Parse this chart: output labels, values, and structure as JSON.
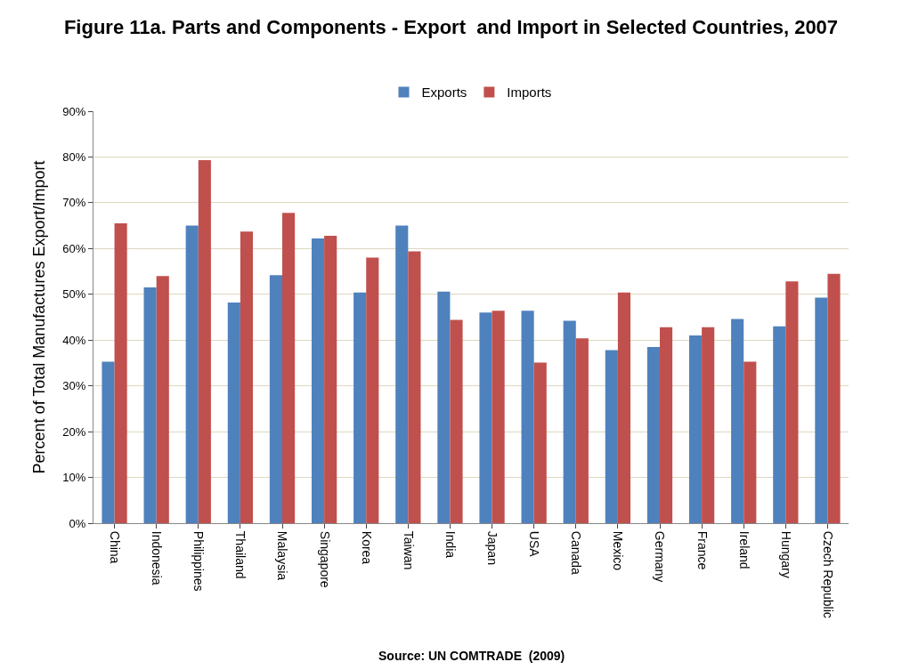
{
  "chart_data": {
    "type": "bar",
    "title": "Figure 11a. Parts and Components - Export  and Import in Selected Countries, 2007",
    "ylabel": "Percent of Total Manufactures Export/Import",
    "categories": [
      "China",
      "Indonesia",
      "Philippines",
      "Thailand",
      "Malaysia",
      "Singapore",
      "Korea",
      "Taiwan",
      "India",
      "Japan",
      "USA",
      "Canada",
      "Mexico",
      "Germany",
      "France",
      "Ireland",
      "Hungary",
      "Czech Republic"
    ],
    "series": [
      {
        "name": "Exports",
        "color": "#4f81bd",
        "values": [
          35.3,
          51.5,
          65.0,
          48.2,
          54.2,
          62.2,
          50.4,
          65.0,
          50.6,
          46.0,
          46.4,
          44.2,
          37.8,
          38.5,
          41.0,
          44.6,
          43.0,
          49.3
        ]
      },
      {
        "name": "Imports",
        "color": "#c0504d",
        "values": [
          65.5,
          54.0,
          79.3,
          63.7,
          67.8,
          62.8,
          58.0,
          59.4,
          44.4,
          46.4,
          35.1,
          40.4,
          50.4,
          42.8,
          42.8,
          35.3,
          52.8,
          54.5
        ]
      }
    ],
    "ylim": [
      0,
      90
    ],
    "yticks": [
      {
        "value": 0,
        "label": "0%"
      },
      {
        "value": 10,
        "label": "10%"
      },
      {
        "value": 20,
        "label": "20%"
      },
      {
        "value": 30,
        "label": "30%"
      },
      {
        "value": 40,
        "label": "40%"
      },
      {
        "value": 50,
        "label": "50%"
      },
      {
        "value": 60,
        "label": "60%"
      },
      {
        "value": 70,
        "label": "70%"
      },
      {
        "value": 80,
        "label": "80%"
      },
      {
        "value": 90,
        "label": "90%"
      }
    ],
    "grid": "y",
    "legend": "top",
    "annotations": [
      "Source: UN COMTRADE  (2009)"
    ]
  }
}
